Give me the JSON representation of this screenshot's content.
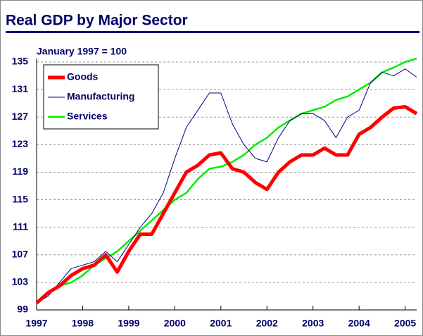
{
  "chart_data": {
    "type": "line",
    "title": "Real GDP by Major Sector",
    "subtitle": "January 1997 = 100",
    "x": [
      1997,
      1997.25,
      1997.5,
      1997.75,
      1998,
      1998.25,
      1998.5,
      1998.75,
      1999,
      1999.25,
      1999.5,
      1999.75,
      2000,
      2000.25,
      2000.5,
      2000.75,
      2001,
      2001.25,
      2001.5,
      2001.75,
      2002,
      2002.25,
      2002.5,
      2002.75,
      2003,
      2003.25,
      2003.5,
      2003.75,
      2004,
      2004.25,
      2004.5,
      2004.75,
      2005,
      2005.25
    ],
    "series": [
      {
        "name": "Goods",
        "color": "#ff0000",
        "values": [
          100,
          101.5,
          102.5,
          104,
          105,
          105.5,
          107,
          104.5,
          107.5,
          110,
          110,
          113,
          116,
          119,
          120,
          121.5,
          121.8,
          119.5,
          119,
          117.5,
          116.5,
          119,
          120.5,
          121.5,
          121.5,
          122.5,
          121.5,
          121.5,
          124.5,
          125.5,
          127,
          128.3,
          128.5,
          127.5
        ]
      },
      {
        "name": "Manufacturing",
        "color": "#000080",
        "values": [
          100,
          101,
          103,
          105,
          105.5,
          106,
          107.5,
          106,
          108.5,
          111,
          113,
          116,
          121,
          125.5,
          128,
          130.5,
          130.5,
          126,
          123,
          121,
          120.5,
          124,
          126.5,
          127.5,
          127.5,
          126.5,
          124,
          127,
          128,
          132,
          133.5,
          133,
          134,
          132.8
        ]
      },
      {
        "name": "Services",
        "color": "#00ee00",
        "values": [
          100,
          101.5,
          102.5,
          103,
          104,
          105.5,
          106.5,
          107.5,
          109,
          110.5,
          112,
          113.5,
          115,
          116,
          118,
          119.5,
          119.8,
          120.5,
          121.5,
          123,
          124,
          125.5,
          126.5,
          127.5,
          128,
          128.5,
          129.5,
          130,
          131,
          132,
          133.5,
          134.2,
          135,
          135.5
        ]
      }
    ],
    "xlim": [
      1997,
      2005.25
    ],
    "xticks": [
      1997,
      1998,
      1999,
      2000,
      2001,
      2002,
      2003,
      2004,
      2005
    ],
    "ylim": [
      99,
      135
    ],
    "yticks": [
      99,
      103,
      107,
      111,
      115,
      119,
      123,
      127,
      131,
      135
    ],
    "grid": true
  }
}
